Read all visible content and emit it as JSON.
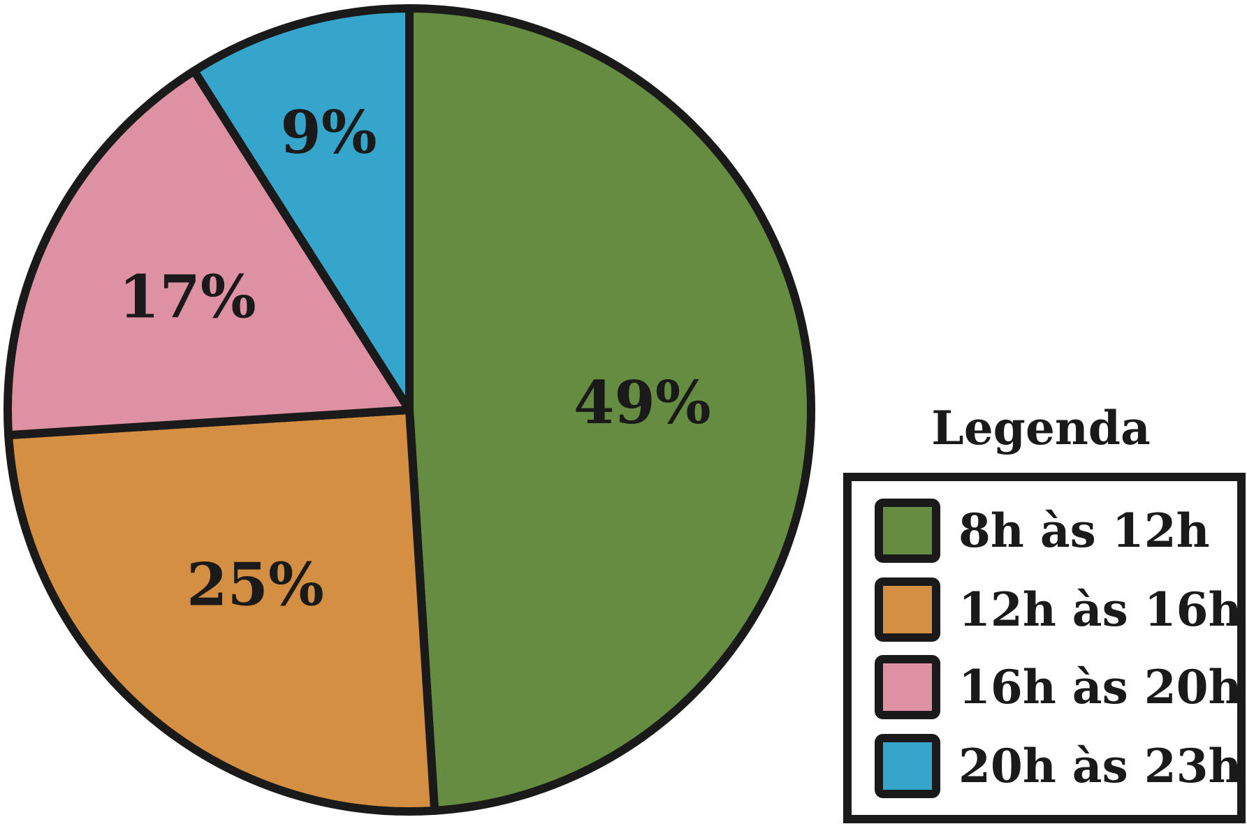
{
  "chart_data": {
    "type": "pie",
    "categories": [
      "8h às 12h",
      "12h às 16h",
      "16h às 20h",
      "20h às 23h"
    ],
    "values": [
      49,
      25,
      17,
      9
    ],
    "data_labels": [
      "49%",
      "25%",
      "17%",
      "9%"
    ],
    "colors": [
      "#668c42",
      "#d48f43",
      "#dd91a3",
      "#36a5cc"
    ],
    "start": "top",
    "direction": "clockwise",
    "legend": {
      "title": "Legenda",
      "placement": "bottom-right",
      "items": [
        "8h às 12h",
        "12h às 16h",
        "16h às 20h",
        "20h às 23h"
      ]
    }
  }
}
